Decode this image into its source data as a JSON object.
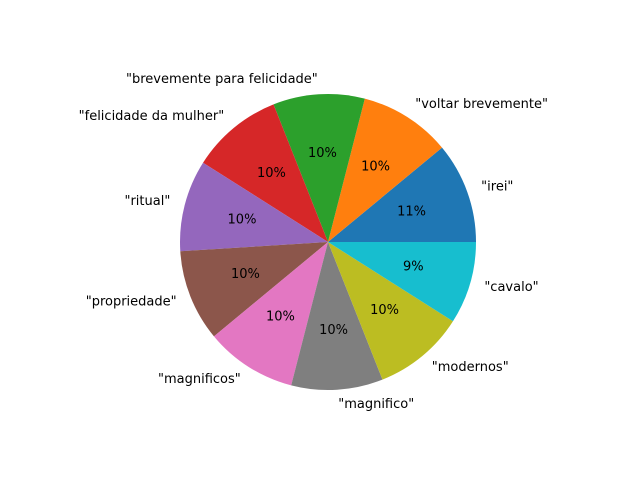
{
  "chart_data": {
    "type": "pie",
    "title": "",
    "start_angle_deg": 0,
    "direction": "counterclockwise",
    "slices": [
      {
        "label": "\"irei\"",
        "value": 11,
        "pct_label": "11%",
        "color": "#1f77b4"
      },
      {
        "label": "\"voltar brevemente\"",
        "value": 10,
        "pct_label": "10%",
        "color": "#ff7f0e"
      },
      {
        "label": "\"brevemente para felicidade\"",
        "value": 10,
        "pct_label": "10%",
        "color": "#2ca02c"
      },
      {
        "label": "\"felicidade da mulher\"",
        "value": 10,
        "pct_label": "10%",
        "color": "#d62728"
      },
      {
        "label": "\"ritual\"",
        "value": 10,
        "pct_label": "10%",
        "color": "#9467bd"
      },
      {
        "label": "\"propriedade\"",
        "value": 10,
        "pct_label": "10%",
        "color": "#8c564b"
      },
      {
        "label": "\"magnificos\"",
        "value": 10,
        "pct_label": "10%",
        "color": "#e377c2"
      },
      {
        "label": "\"magnifico\"",
        "value": 10,
        "pct_label": "10%",
        "color": "#7f7f7f"
      },
      {
        "label": "\"modernos\"",
        "value": 10,
        "pct_label": "10%",
        "color": "#bcbd22"
      },
      {
        "label": "\"cavalo\"",
        "value": 9,
        "pct_label": "9%",
        "color": "#17becf"
      }
    ]
  }
}
